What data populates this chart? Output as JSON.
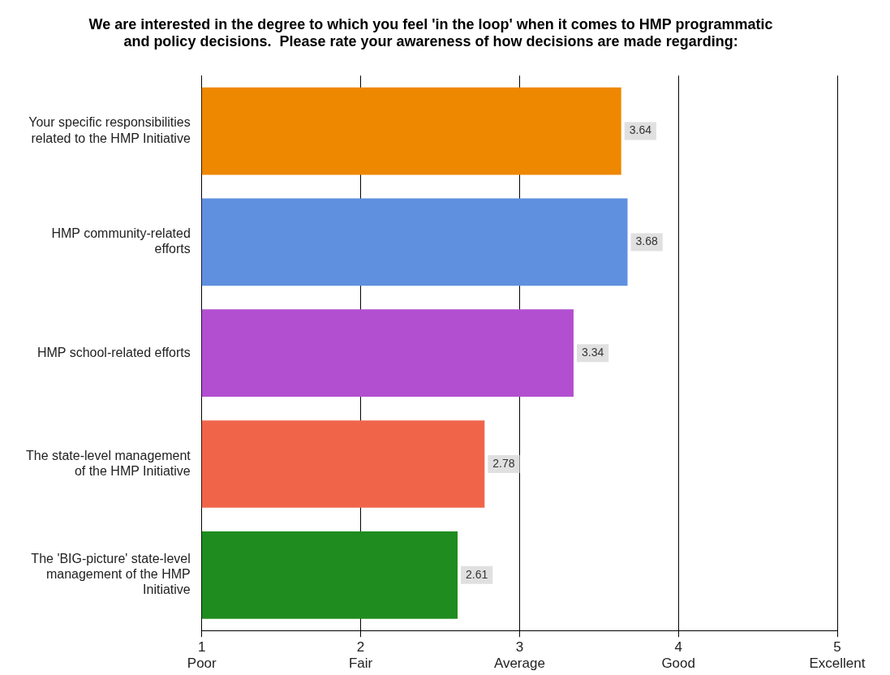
{
  "chart_data": {
    "type": "bar",
    "orientation": "horizontal",
    "title": "We are interested in the degree to which you feel 'in the loop' when it comes to HMP programmatic and policy decisions.  Please rate your awareness of how decisions are made regarding:",
    "categories": [
      "Your specific responsibilities related to the HMP Initiative",
      "HMP community-related efforts",
      "HMP school-related efforts",
      "The state-level management of the HMP Initiative",
      "The 'BIG-picture' state-level management of the HMP Initiative"
    ],
    "values": [
      3.64,
      3.68,
      3.34,
      2.78,
      2.61
    ],
    "colors": [
      "#ee8800",
      "#5f90e0",
      "#b24fd0",
      "#f0654a",
      "#1f8c1f"
    ],
    "xlim": [
      1,
      5
    ],
    "xticks": [
      {
        "value": 1,
        "label": "1\nPoor"
      },
      {
        "value": 2,
        "label": "2\nFair"
      },
      {
        "value": 3,
        "label": "3\nAverage"
      },
      {
        "value": 4,
        "label": "4\nGood"
      },
      {
        "value": 5,
        "label": "5\nExcellent"
      }
    ],
    "grid": "x",
    "data_labels": true,
    "legend": false
  }
}
